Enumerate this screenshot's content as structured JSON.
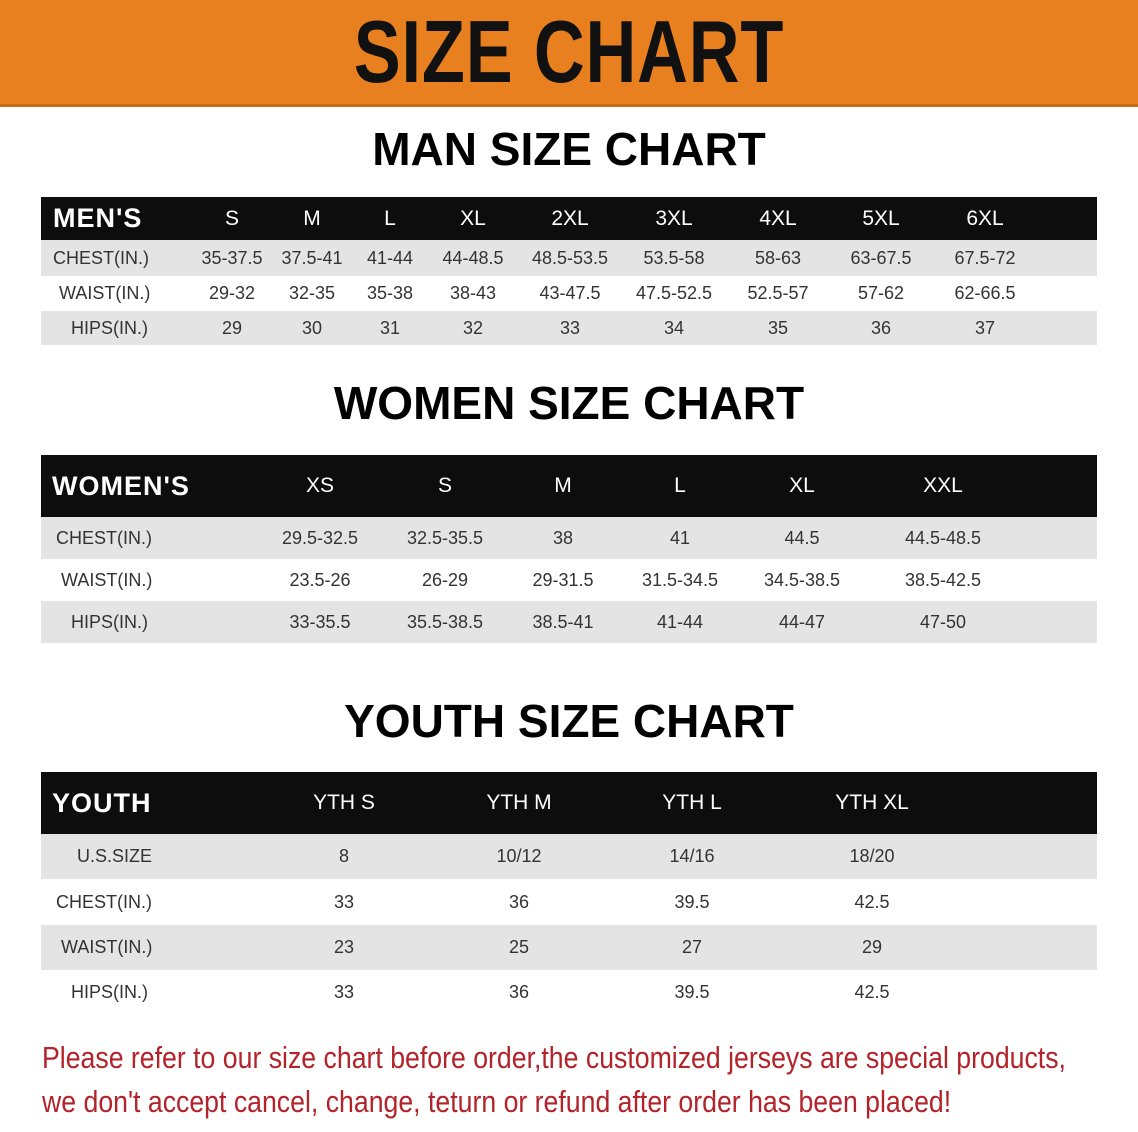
{
  "banner": {
    "title": "SIZE CHART",
    "color": "#e8801f"
  },
  "men": {
    "title": "MAN SIZE CHART",
    "header": [
      "MEN'S",
      "S",
      "M",
      "L",
      "XL",
      "2XL",
      "3XL",
      "4XL",
      "5XL",
      "6XL"
    ],
    "rows": [
      [
        "CHEST(IN.)",
        "35-37.5",
        "37.5-41",
        "41-44",
        "44-48.5",
        "48.5-53.5",
        "53.5-58",
        "58-63",
        "63-67.5",
        "67.5-72"
      ],
      [
        "WAIST(IN.)",
        "29-32",
        "32-35",
        "35-38",
        "38-43",
        "43-47.5",
        "47.5-52.5",
        "52.5-57",
        "57-62",
        "62-66.5"
      ],
      [
        "HIPS(IN.)",
        "29",
        "30",
        "31",
        "32",
        "33",
        "34",
        "35",
        "36",
        "37"
      ]
    ]
  },
  "women": {
    "title": "WOMEN SIZE CHART",
    "header": [
      "WOMEN'S",
      "XS",
      "S",
      "M",
      "L",
      "XL",
      "XXL"
    ],
    "rows": [
      [
        "CHEST(IN.)",
        "29.5-32.5",
        "32.5-35.5",
        "38",
        "41",
        "44.5",
        "44.5-48.5"
      ],
      [
        "WAIST(IN.)",
        "23.5-26",
        "26-29",
        "29-31.5",
        "31.5-34.5",
        "34.5-38.5",
        "38.5-42.5"
      ],
      [
        "HIPS(IN.)",
        "33-35.5",
        "35.5-38.5",
        "38.5-41",
        "41-44",
        "44-47",
        "47-50"
      ]
    ]
  },
  "youth": {
    "title": "YOUTH SIZE CHART",
    "header": [
      "YOUTH",
      "YTH S",
      "YTH M",
      "YTH L",
      "YTH XL"
    ],
    "rows": [
      [
        "U.S.SIZE",
        "8",
        "10/12",
        "14/16",
        "18/20"
      ],
      [
        "CHEST(IN.)",
        "33",
        "36",
        "39.5",
        "42.5"
      ],
      [
        "WAIST(IN.)",
        "23",
        "25",
        "27",
        "29"
      ],
      [
        "HIPS(IN.)",
        "33",
        "36",
        "39.5",
        "42.5"
      ]
    ]
  },
  "footer": {
    "line1": "Please refer to our size chart before order,the customized jerseys are special products,",
    "line2": "we don't accept cancel, change, teturn or refund after order has been placed!",
    "color": "#b3232a"
  }
}
